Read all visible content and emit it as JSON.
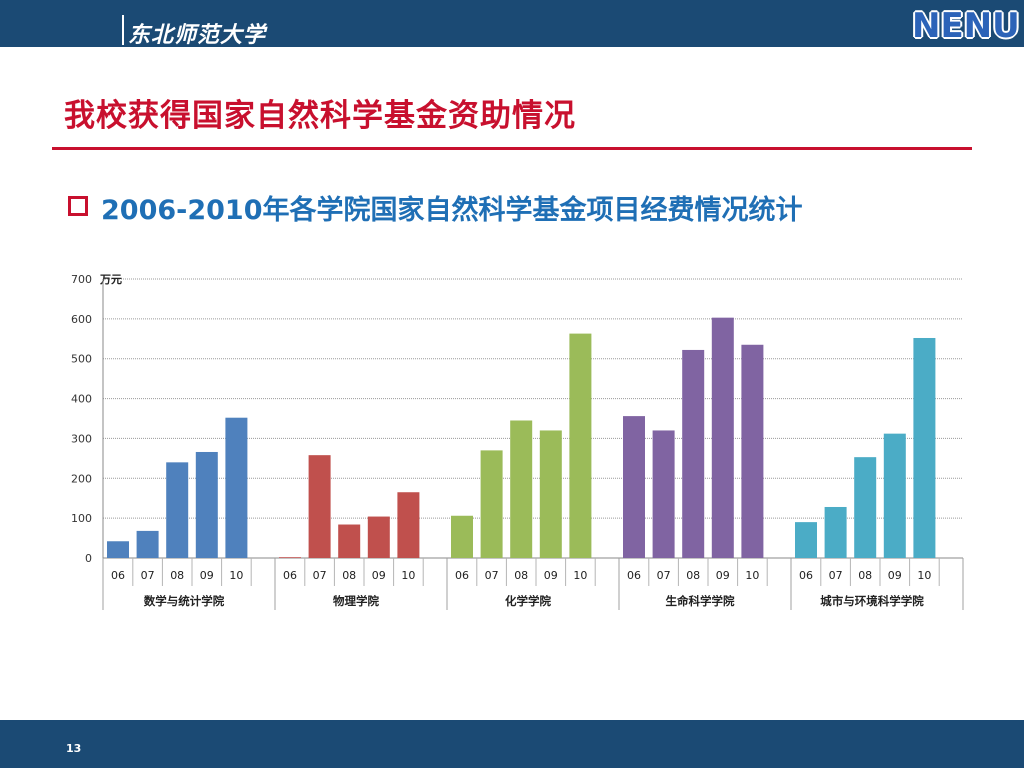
{
  "header": {
    "university_name": "东北师范大学",
    "logo_text": "NENU"
  },
  "page_title": "我校获得国家自然科学基金资助情况",
  "subtitle": "2006-2010年各学院国家自然科学基金项目经费情况统计",
  "page_number": "13",
  "colors": {
    "header_bar": "#1b4a74",
    "title_red": "#c8102e",
    "subtitle_blue": "#1f6fb5"
  },
  "chart_data": {
    "type": "bar",
    "ylabel": "万元",
    "ylim": [
      0,
      700
    ],
    "yticks": [
      0,
      100,
      200,
      300,
      400,
      500,
      600,
      700
    ],
    "grid": true,
    "years": [
      "06",
      "07",
      "08",
      "09",
      "10"
    ],
    "groups": [
      {
        "name": "数学与统计学院",
        "color": "#4f81bd",
        "values": [
          42,
          68,
          240,
          266,
          352
        ]
      },
      {
        "name": "物理学院",
        "color": "#c0504d",
        "values": [
          2,
          258,
          84,
          104,
          165
        ]
      },
      {
        "name": "化学学院",
        "color": "#9bbb59",
        "values": [
          106,
          270,
          345,
          320,
          563
        ]
      },
      {
        "name": "生命科学学院",
        "color": "#8064a2",
        "values": [
          356,
          320,
          522,
          603,
          535
        ]
      },
      {
        "name": "城市与环境科学学院",
        "color": "#4bacc6",
        "values": [
          90,
          128,
          253,
          312,
          552
        ]
      }
    ]
  }
}
